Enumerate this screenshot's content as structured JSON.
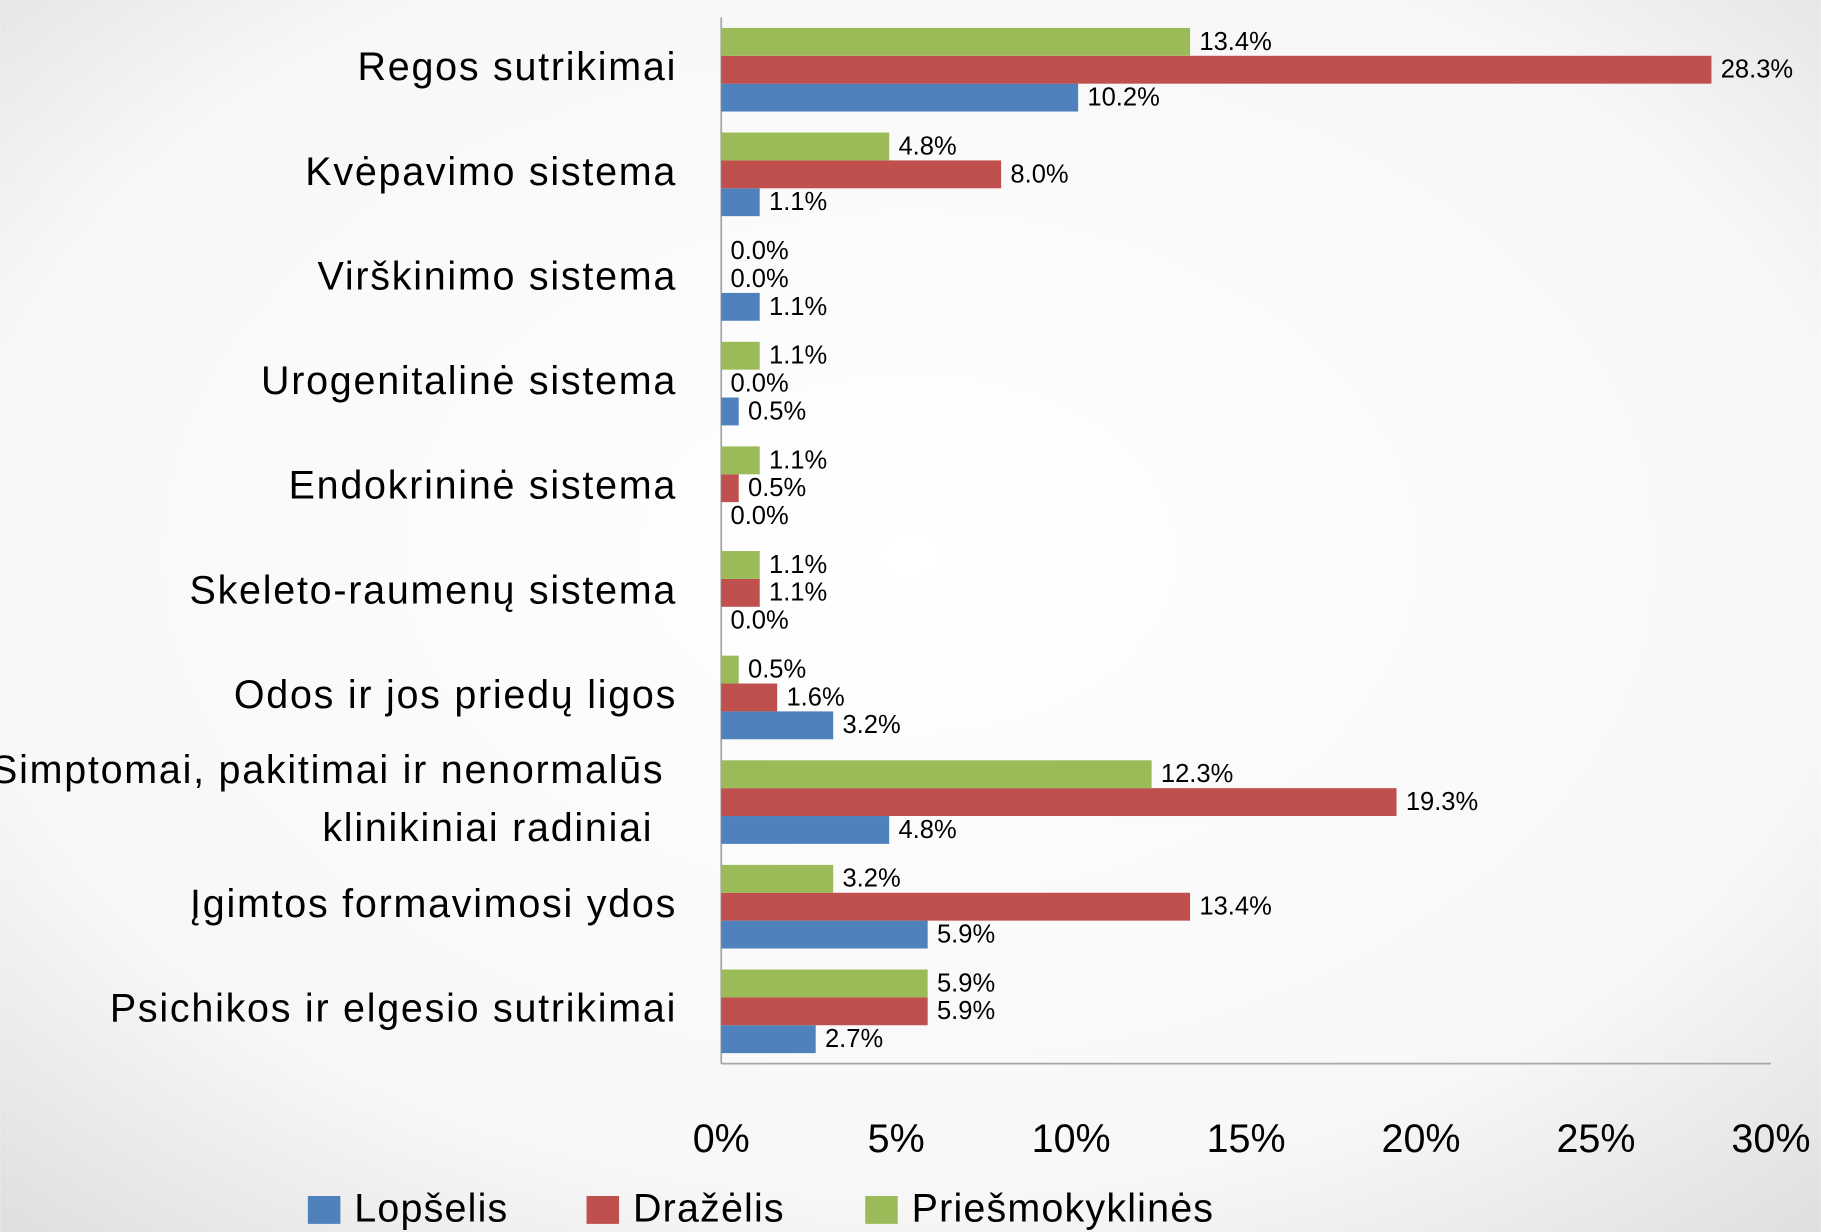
{
  "chart_data": {
    "type": "bar",
    "orientation": "horizontal",
    "categories": [
      "Regos sutrikimai",
      "Kvėpavimo sistema",
      "Virškinimo sistema",
      "Urogenitalinė sistema",
      "Endokrininė sistema",
      "Skeleto-raumenų sistema",
      "Odos ir jos priedų ligos",
      "Simptomai, pakitimai ir nenormalūs klinikiniai radiniai",
      "Įgimtos formavimosi ydos",
      "Psichikos ir elgesio sutrikimai"
    ],
    "series": [
      {
        "name": "Lopšelis",
        "color": "#4f81bd",
        "values": [
          10.2,
          1.1,
          1.1,
          0.5,
          0.0,
          0.0,
          3.2,
          4.8,
          5.9,
          2.7
        ],
        "value_labels": [
          "10.2%",
          "1.1%",
          "1.1%",
          "0.5%",
          "0.0%",
          "0.0%",
          "3.2%",
          "4.8%",
          "5.9%",
          "2.7%"
        ]
      },
      {
        "name": "Dražėlis",
        "color": "#c0504d",
        "values": [
          28.3,
          8.0,
          0.0,
          0.0,
          0.5,
          1.1,
          1.6,
          19.3,
          13.4,
          5.9
        ],
        "value_labels": [
          "28.3%",
          "8.0%",
          "0.0%",
          "0.0%",
          "0.5%",
          "1.1%",
          "1.6%",
          "19.3%",
          "13.4%",
          "5.9%"
        ]
      },
      {
        "name": "Priešmokyklinės",
        "color": "#9bbb59",
        "values": [
          13.4,
          4.8,
          0.0,
          1.1,
          1.1,
          1.1,
          0.5,
          12.3,
          3.2,
          5.9
        ],
        "value_labels": [
          "13.4%",
          "4.8%",
          "0.0%",
          "1.1%",
          "1.1%",
          "1.1%",
          "0.5%",
          "12.3%",
          "3.2%",
          "5.9%"
        ]
      }
    ],
    "xlim": [
      0,
      30
    ],
    "xticks": [
      {
        "value": 0,
        "label": "0%"
      },
      {
        "value": 5,
        "label": "5%"
      },
      {
        "value": 10,
        "label": "10%"
      },
      {
        "value": 15,
        "label": "15%"
      },
      {
        "value": 20,
        "label": "20%"
      },
      {
        "value": 25,
        "label": "25%"
      },
      {
        "value": 30,
        "label": "30%"
      }
    ],
    "legend": "bottom"
  }
}
